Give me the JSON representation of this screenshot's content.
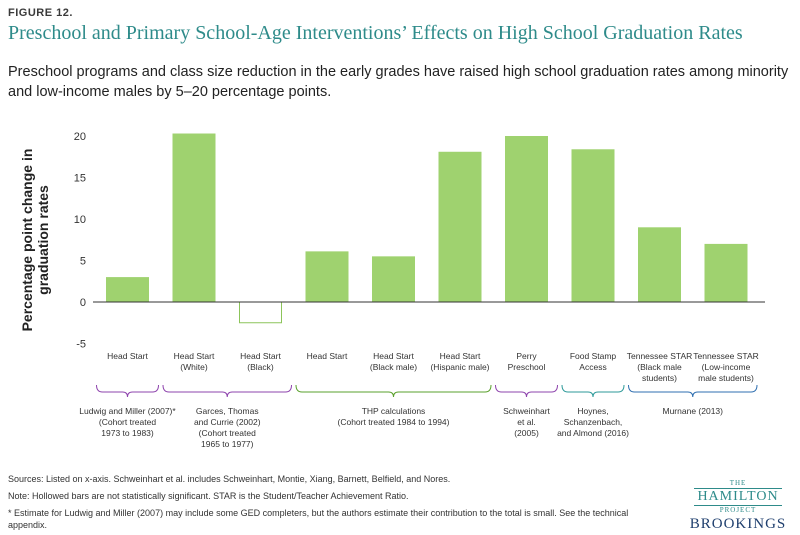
{
  "header": {
    "figure_label": "FIGURE 12.",
    "title": "Preschool and Primary School-Age Interventions’ Effects on High School Graduation Rates",
    "subtitle": "Preschool programs and class size reduction in the early grades have raised high school graduation rates among minority and low-income males by 5–20 percentage points."
  },
  "chart_data": {
    "type": "bar",
    "ylabel": "Percentage point change in graduation rates",
    "ylim": [
      -5,
      22
    ],
    "yticks": [
      20,
      15,
      10,
      5,
      0,
      -5
    ],
    "grid": false,
    "categories": [
      [
        "Head Start"
      ],
      [
        "Head Start",
        "(White)"
      ],
      [
        "Head Start",
        "(Black)"
      ],
      [
        "Head Start"
      ],
      [
        "Head Start",
        "(Black male)"
      ],
      [
        "Head Start",
        "(Hispanic male)"
      ],
      [
        "Perry",
        "Preschool"
      ],
      [
        "Food Stamp",
        "Access"
      ],
      [
        "Tennessee STAR",
        "(Black male",
        "students)"
      ],
      [
        "Tennessee STAR",
        "(Low-income",
        "male students)"
      ]
    ],
    "values": [
      3.0,
      20.3,
      -2.5,
      6.1,
      5.5,
      18.1,
      20.0,
      18.4,
      9.0,
      7.0
    ],
    "significant": [
      true,
      true,
      false,
      true,
      true,
      true,
      true,
      true,
      true,
      true
    ],
    "bar_color": "#9fd26f",
    "hollow_border_color": "#8cc45a",
    "groups": [
      {
        "start": 0,
        "end": 0,
        "color": "#8e44ad",
        "lines": [
          "Ludwig and Miller (2007)*",
          "(Cohort treated",
          "1973 to 1983)"
        ]
      },
      {
        "start": 1,
        "end": 2,
        "color": "#8e44ad",
        "lines": [
          "Garces, Thomas",
          "and Currie (2002)",
          "(Cohort treated",
          "1965 to 1977)"
        ]
      },
      {
        "start": 3,
        "end": 5,
        "color": "#5aa02c",
        "lines": [
          "THP calculations",
          "(Cohort treated 1984 to 1994)"
        ]
      },
      {
        "start": 6,
        "end": 6,
        "color": "#8e44ad",
        "lines": [
          "Schweinhart",
          "et al.",
          "(2005)"
        ]
      },
      {
        "start": 7,
        "end": 7,
        "color": "#2e9a9a",
        "lines": [
          "Hoynes,",
          "Schanzenbach,",
          "and Almond (2016)"
        ]
      },
      {
        "start": 8,
        "end": 9,
        "color": "#2f6fb0",
        "lines": [
          "Murnane (2013)"
        ]
      }
    ]
  },
  "footer": {
    "sources": "Sources: Listed on x-axis. Schweinhart et al. includes Schweinhart, Montie, Xiang, Barnett, Belfield, and Nores.",
    "note": "Note: Hollowed bars are not statistically significant. STAR is the Student/Teacher Achievement Ratio.",
    "footnote": "* Estimate for Ludwig and Miller (2007) may include some GED completers, but the authors estimate their contribution to the total is small. See the technical appendix."
  },
  "logo": {
    "the": "THE",
    "hamilton": "HAMILTON",
    "project": "PROJECT",
    "brookings": "BROOKINGS"
  }
}
